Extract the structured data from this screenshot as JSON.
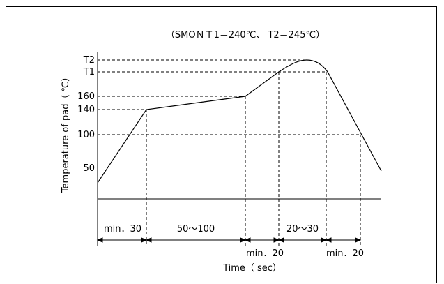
{
  "title": "（SMOＮＴ1＝240℃、 T2＝245℃）",
  "y_axis_label": "Temperature of pad（ ℃）",
  "x_axis_label": "Time（ sec）",
  "y_ticks": {
    "t2": "T2",
    "t1": "T1",
    "v160": "160",
    "v140": "140",
    "v100": "100",
    "v50": "50"
  },
  "intervals": {
    "preheat_rise": "min．30",
    "soak": "50～100",
    "ramp_to_peak": "min．20",
    "above_t1": "20～30",
    "cooling": "min．20"
  },
  "colors": {
    "line": "#000000",
    "background": "#ffffff"
  }
}
